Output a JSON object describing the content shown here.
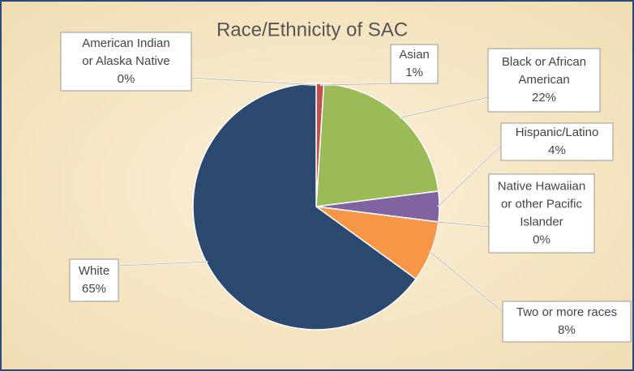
{
  "chart_data": {
    "type": "pie",
    "title": "Race/Ethnicity of SAC",
    "categories": [
      "American Indian or Alaska Native",
      "Asian",
      "Black or African American",
      "Hispanic/Latino",
      "Native Hawaiian or other Pacific Islander",
      "Two or more races",
      "White"
    ],
    "values": [
      0,
      1,
      22,
      4,
      0,
      8,
      65
    ],
    "value_labels": [
      "0%",
      "1%",
      "22%",
      "4%",
      "0%",
      "8%",
      "65%"
    ],
    "colors": [
      "#4f81bd",
      "#c0504d",
      "#9bbb59",
      "#8064a2",
      "#4bacc6",
      "#f79646",
      "#2c4a70"
    ]
  }
}
